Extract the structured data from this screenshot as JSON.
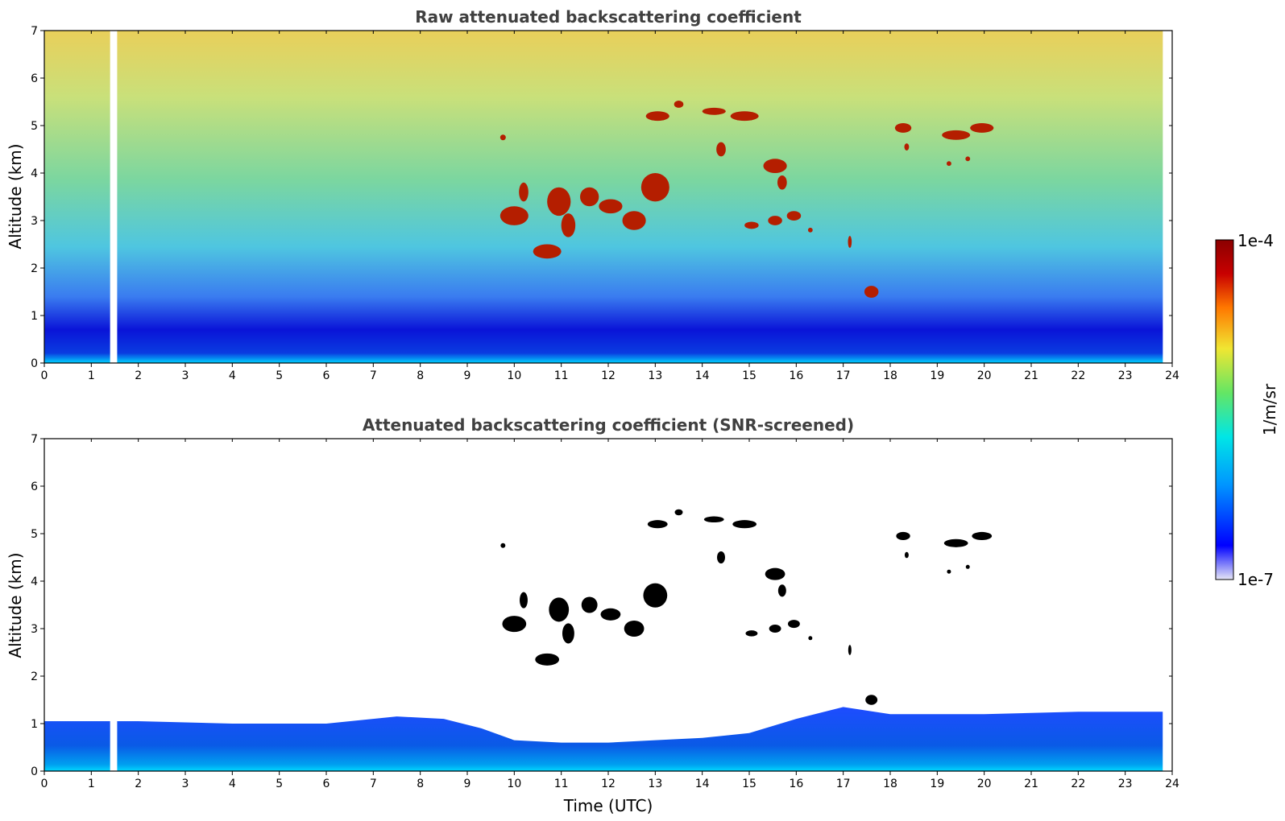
{
  "chart_data": [
    {
      "type": "heatmap",
      "title": "Raw attenuated backscattering coefficient",
      "xlabel": "",
      "ylabel": "Altitude (km)",
      "xlim": [
        0,
        24
      ],
      "ylim": [
        0,
        7
      ],
      "x_ticks": [
        "0",
        "1",
        "2",
        "3",
        "4",
        "5",
        "6",
        "7",
        "8",
        "9",
        "10",
        "11",
        "12",
        "13",
        "14",
        "15",
        "16",
        "17",
        "18",
        "19",
        "20",
        "21",
        "22",
        "23",
        "24"
      ],
      "y_ticks": [
        "0",
        "1",
        "2",
        "3",
        "4",
        "5",
        "6",
        "7"
      ],
      "data_gap": {
        "time_utc": [
          1.4,
          1.55
        ]
      },
      "data_end_time_utc": 23.8,
      "cloud_patches": [
        {
          "t": 9.7,
          "z": 4.75,
          "w": 0.12,
          "h": 0.12
        },
        {
          "t": 9.7,
          "z": 3.1,
          "w": 0.6,
          "h": 0.4
        },
        {
          "t": 10.1,
          "z": 3.6,
          "w": 0.2,
          "h": 0.4
        },
        {
          "t": 10.4,
          "z": 2.35,
          "w": 0.6,
          "h": 0.3
        },
        {
          "t": 10.7,
          "z": 3.4,
          "w": 0.5,
          "h": 0.6
        },
        {
          "t": 11.0,
          "z": 2.9,
          "w": 0.3,
          "h": 0.5
        },
        {
          "t": 11.4,
          "z": 3.5,
          "w": 0.4,
          "h": 0.4
        },
        {
          "t": 11.8,
          "z": 3.3,
          "w": 0.5,
          "h": 0.3
        },
        {
          "t": 12.3,
          "z": 3.0,
          "w": 0.5,
          "h": 0.4
        },
        {
          "t": 12.7,
          "z": 3.7,
          "w": 0.6,
          "h": 0.6
        },
        {
          "t": 12.8,
          "z": 5.2,
          "w": 0.5,
          "h": 0.2
        },
        {
          "t": 13.4,
          "z": 5.45,
          "w": 0.2,
          "h": 0.15
        },
        {
          "t": 14.0,
          "z": 5.3,
          "w": 0.5,
          "h": 0.15
        },
        {
          "t": 14.6,
          "z": 5.2,
          "w": 0.6,
          "h": 0.2
        },
        {
          "t": 14.3,
          "z": 4.5,
          "w": 0.2,
          "h": 0.3
        },
        {
          "t": 15.3,
          "z": 4.15,
          "w": 0.5,
          "h": 0.3
        },
        {
          "t": 15.6,
          "z": 3.8,
          "w": 0.2,
          "h": 0.3
        },
        {
          "t": 14.9,
          "z": 2.9,
          "w": 0.3,
          "h": 0.15
        },
        {
          "t": 15.4,
          "z": 3.0,
          "w": 0.3,
          "h": 0.2
        },
        {
          "t": 15.8,
          "z": 3.1,
          "w": 0.3,
          "h": 0.2
        },
        {
          "t": 16.25,
          "z": 2.8,
          "w": 0.1,
          "h": 0.1
        },
        {
          "t": 17.1,
          "z": 2.55,
          "w": 0.08,
          "h": 0.25
        },
        {
          "t": 17.45,
          "z": 1.5,
          "w": 0.3,
          "h": 0.25
        },
        {
          "t": 18.1,
          "z": 4.95,
          "w": 0.35,
          "h": 0.2
        },
        {
          "t": 18.3,
          "z": 4.55,
          "w": 0.1,
          "h": 0.15
        },
        {
          "t": 19.1,
          "z": 4.8,
          "w": 0.6,
          "h": 0.2
        },
        {
          "t": 19.7,
          "z": 4.95,
          "w": 0.5,
          "h": 0.2
        },
        {
          "t": 19.2,
          "z": 4.2,
          "w": 0.1,
          "h": 0.1
        },
        {
          "t": 19.6,
          "z": 4.3,
          "w": 0.1,
          "h": 0.1
        }
      ]
    },
    {
      "type": "heatmap",
      "title": "Attenuated backscattering coefficient (SNR-screened)",
      "xlabel": "Time (UTC)",
      "ylabel": "Altitude (km)",
      "xlim": [
        0,
        24
      ],
      "ylim": [
        0,
        7
      ],
      "x_ticks": [
        "0",
        "1",
        "2",
        "3",
        "4",
        "5",
        "6",
        "7",
        "8",
        "9",
        "10",
        "11",
        "12",
        "13",
        "14",
        "15",
        "16",
        "17",
        "18",
        "19",
        "20",
        "21",
        "22",
        "23",
        "24"
      ],
      "y_ticks": [
        "0",
        "1",
        "2",
        "3",
        "4",
        "5",
        "6",
        "7"
      ],
      "data_gap": {
        "time_utc": [
          1.4,
          1.55
        ]
      },
      "data_end_time_utc": 23.8,
      "boundary_layer_top_km": [
        [
          0,
          1.05
        ],
        [
          2,
          1.05
        ],
        [
          4,
          1.0
        ],
        [
          6,
          1.0
        ],
        [
          7.5,
          1.15
        ],
        [
          8.5,
          1.1
        ],
        [
          9.3,
          0.9
        ],
        [
          10,
          0.65
        ],
        [
          11,
          0.6
        ],
        [
          12,
          0.6
        ],
        [
          13,
          0.65
        ],
        [
          14,
          0.7
        ],
        [
          15,
          0.8
        ],
        [
          16,
          1.1
        ],
        [
          17,
          1.35
        ],
        [
          18,
          1.2
        ],
        [
          20,
          1.2
        ],
        [
          22,
          1.25
        ],
        [
          23.8,
          1.25
        ]
      ]
    }
  ],
  "colorbar": {
    "label": "1/m/sr",
    "max_label": "1e-4",
    "min_label": "1e-7",
    "colormap": [
      "#e6e6f5",
      "#0000ff",
      "#0096ff",
      "#00e6e6",
      "#64e664",
      "#f0e632",
      "#ff7800",
      "#c80000",
      "#8b0000"
    ]
  },
  "colors": {
    "raw_top": "#e6c850",
    "raw_high": "#7ad27a",
    "raw_mid": "#4fd0d0",
    "raw_low": "#2a7cf0",
    "raw_surface": "#0a0adc",
    "cloud": "#b41e00",
    "screened_cloud": "#000000",
    "bl_fill": "#1e50ff",
    "bl_surface": "#00c8ff"
  }
}
